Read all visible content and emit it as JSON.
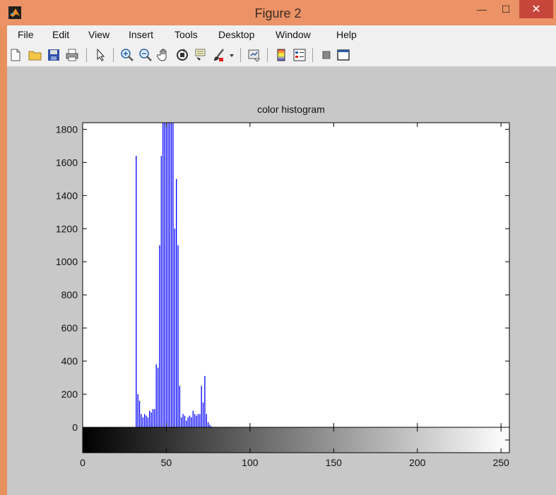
{
  "window": {
    "title": "Figure 2"
  },
  "window_controls": {
    "minimize": "—",
    "maximize": "☐",
    "close": "✕"
  },
  "menu": [
    "File",
    "Edit",
    "View",
    "Insert",
    "Tools",
    "Desktop",
    "Window",
    "Help"
  ],
  "toolbar": [
    "new-file-icon",
    "open-folder-icon",
    "save-icon",
    "print-icon",
    "pointer-arrow-icon",
    "zoom-in-icon",
    "zoom-out-icon",
    "pan-hand-icon",
    "rotate-3d-icon",
    "data-cursor-icon",
    "brush-icon",
    "link-plot-icon",
    "colorbar-icon",
    "legend-icon",
    "hide-plot-tools-icon",
    "show-plot-tools-icon"
  ],
  "chart_data": {
    "type": "bar",
    "title": "color histogram",
    "xlim": [
      0,
      255
    ],
    "ylim": [
      0,
      1840
    ],
    "xticks": [
      0,
      50,
      100,
      150,
      200,
      250
    ],
    "yticks": [
      0,
      200,
      400,
      600,
      800,
      1000,
      1200,
      1400,
      1600,
      1800
    ],
    "series_color": "#0000ff",
    "colorbar": "grayscale 0-255",
    "x": [
      32,
      33,
      34,
      35,
      36,
      37,
      38,
      39,
      40,
      41,
      42,
      43,
      44,
      45,
      46,
      47,
      48,
      49,
      50,
      51,
      52,
      53,
      54,
      55,
      56,
      57,
      58,
      59,
      60,
      61,
      62,
      63,
      64,
      65,
      66,
      67,
      68,
      69,
      70,
      71,
      72,
      73,
      74,
      75,
      76,
      77
    ],
    "values": [
      1640,
      200,
      160,
      80,
      60,
      80,
      70,
      60,
      100,
      90,
      110,
      110,
      380,
      360,
      1100,
      1640,
      1840,
      1840,
      1840,
      1840,
      1840,
      1840,
      1840,
      1200,
      1500,
      1100,
      250,
      60,
      80,
      70,
      40,
      60,
      70,
      60,
      100,
      80,
      70,
      80,
      80,
      250,
      150,
      310,
      80,
      30,
      15,
      5
    ]
  }
}
